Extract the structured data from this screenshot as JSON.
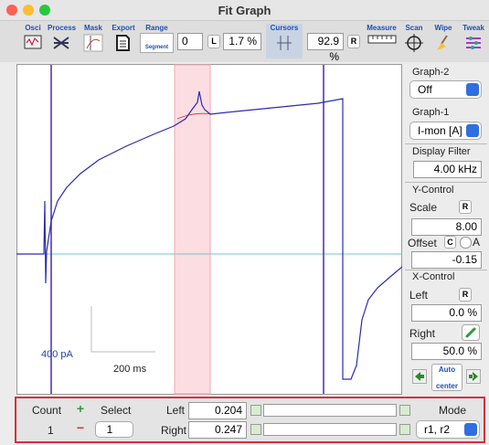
{
  "window": {
    "title": "Fit Graph"
  },
  "toolbar": {
    "osci": "Osci",
    "process": "Process",
    "mask": "Mask",
    "export": "Export",
    "range": "Range",
    "segment": "Segment",
    "counter": "0",
    "left_button": "L",
    "left_percent": "1.7 %",
    "cursors": "Cursors",
    "right_percent": "92.9 %",
    "right_button": "R",
    "measure": "Measure",
    "scan": "Scan",
    "wipe": "Wipe",
    "tweak": "Tweak"
  },
  "plot": {
    "y_scale": "400 pA",
    "x_scale": "200 ms"
  },
  "side_panel": {
    "graph2_label": "Graph-2",
    "graph2_value": "Off",
    "graph1_label": "Graph-1",
    "graph1_value": "I-mon [A]",
    "filter_label": "Display Filter",
    "filter_value": "4.00 kHz",
    "y_control": "Y-Control",
    "scale_label": "Scale",
    "scale_reset": "R",
    "scale_value": "8.00",
    "offset_label": "Offset",
    "offset_c": "C",
    "offset_a": "A",
    "offset_value": "-0.15",
    "x_control": "X-Control",
    "left_label": "Left",
    "left_reset": "R",
    "left_value": "0.0 %",
    "right_label": "Right",
    "right_value": "50.0 %",
    "auto": "Auto",
    "center": "center"
  },
  "bottom_panel": {
    "count_label": "Count",
    "add": "+",
    "select_label": "Select",
    "left_label": "Left",
    "left_value": "0.204",
    "mode_label": "Mode",
    "count_value": "1",
    "remove": "−",
    "select_value": "1",
    "right_label": "Right",
    "right_value": "0.247",
    "mode_value": "r1, r2"
  }
}
